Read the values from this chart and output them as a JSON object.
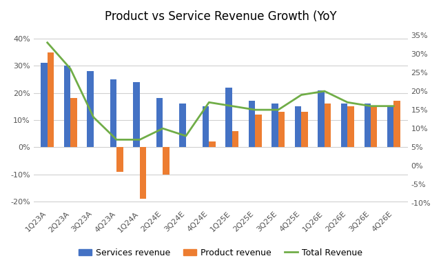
{
  "categories": [
    "1Q23A",
    "2Q23A",
    "3Q23A",
    "4Q23A",
    "1Q24A",
    "2Q24E",
    "3Q24E",
    "4Q24E",
    "1Q25E",
    "2Q25E",
    "3Q25E",
    "4Q25E",
    "1Q26E",
    "2Q26E",
    "3Q26E",
    "4Q26E"
  ],
  "services_revenue": [
    31,
    30,
    28,
    25,
    24,
    18,
    16,
    15,
    22,
    17,
    16,
    15,
    21,
    16,
    16,
    15
  ],
  "product_revenue": [
    35,
    18,
    0,
    -9,
    -19,
    -10,
    0,
    2,
    6,
    12,
    13,
    13,
    16,
    15,
    15,
    17
  ],
  "total_revenue": [
    33,
    26,
    13,
    7,
    7,
    10,
    8,
    17,
    16,
    15,
    15,
    19,
    20,
    17,
    16,
    16
  ],
  "title": "Product vs Service Revenue Growth (YoY",
  "left_yticks": [
    -20,
    -10,
    0,
    10,
    20,
    30,
    40
  ],
  "left_ylabels": [
    "-20%",
    "-10%",
    "0%",
    "10%",
    "20%",
    "30%",
    "40%"
  ],
  "right_yticks": [
    -10,
    -5,
    0,
    5,
    10,
    15,
    20,
    25,
    30,
    35
  ],
  "right_ylabels": [
    "-10%",
    "-5%",
    "0%",
    "5%",
    "10%",
    "15%",
    "20%",
    "25%",
    "30%",
    "35%"
  ],
  "services_color": "#4472C4",
  "product_color": "#ED7D31",
  "total_color": "#70AD47",
  "background_color": "#FFFFFF",
  "legend_labels": [
    "Services revenue",
    "Product revenue",
    "Total Revenue"
  ],
  "left_ylim": [
    -22,
    44
  ],
  "right_ylim": [
    -11,
    37
  ],
  "bar_width": 0.28,
  "title_fontsize": 12,
  "tick_fontsize": 8,
  "legend_fontsize": 9,
  "grid_color": "#D0D0D0"
}
